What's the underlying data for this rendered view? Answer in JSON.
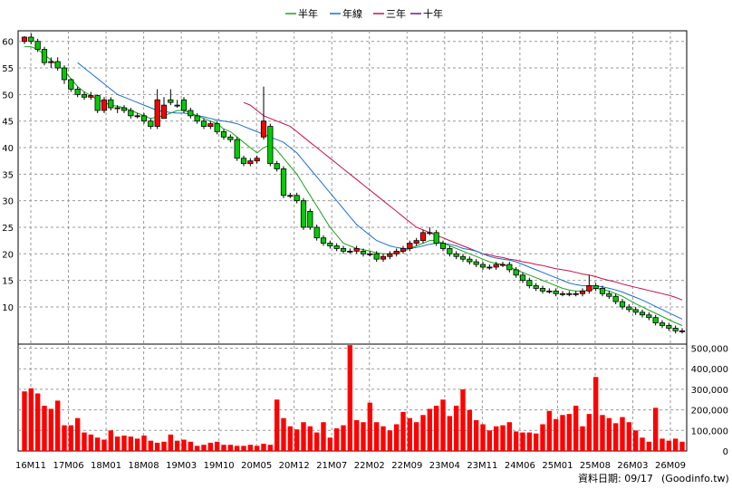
{
  "chart_data": {
    "type": "candlestick",
    "legend": [
      {
        "label": "半年",
        "color": "#1aa51a"
      },
      {
        "label": "年線",
        "color": "#1a6fd6"
      },
      {
        "label": "三年",
        "color": "#c8104a"
      },
      {
        "label": "十年",
        "color": "#6a1a8c"
      }
    ],
    "price_axis": {
      "ylim": [
        3,
        62
      ],
      "ticks": [
        10,
        15,
        20,
        25,
        30,
        35,
        40,
        45,
        50,
        55,
        60
      ]
    },
    "volume_axis": {
      "ylim": [
        0,
        520000
      ],
      "ticks": [
        0,
        100000,
        200000,
        300000,
        400000,
        500000
      ],
      "tick_labels": [
        "0",
        "100,000",
        "200,000",
        "300,000",
        "400,000",
        "500,000"
      ]
    },
    "x_labels": [
      "16M11",
      "17M06",
      "18M01",
      "18M08",
      "19M03",
      "19M10",
      "20M05",
      "20M12",
      "21M07",
      "22M02",
      "22M09",
      "23M04",
      "23M11",
      "24M06",
      "25M01",
      "25M08",
      "26M03",
      "26M09"
    ],
    "candles": {
      "open": [
        60.0,
        60.8,
        60.0,
        58.5,
        56.0,
        56.2,
        55.0,
        52.8,
        51.0,
        50.0,
        49.5,
        49.8,
        47.0,
        49.0,
        47.5,
        47.5,
        47.0,
        46.0,
        46.0,
        45.0,
        44.0,
        45.5,
        49.0,
        48.0,
        49.0,
        47.0,
        46.0,
        45.0,
        44.0,
        44.5,
        43.0,
        42.0,
        41.5,
        38.0,
        37.0,
        37.5,
        42.0,
        44.0,
        37.0,
        36.0,
        31.0,
        31.0,
        30.0,
        28.0,
        25.0,
        23.0,
        22.0,
        21.5,
        21.0,
        20.5,
        20.5,
        20.5,
        20.0,
        20.0,
        19.0,
        19.5,
        20.0,
        20.5,
        21.0,
        22.0,
        22.5,
        24.0,
        24.0,
        22.0,
        21.0,
        20.0,
        19.5,
        19.0,
        18.5,
        18.0,
        17.5,
        17.5,
        18.0,
        18.0,
        17.0,
        16.0,
        15.0,
        14.0,
        13.5,
        13.0,
        13.0,
        12.5,
        12.5,
        12.5,
        12.5,
        13.0,
        14.0,
        13.5,
        12.5,
        12.0,
        11.0,
        10.0,
        9.5,
        9.0,
        8.5,
        8.0,
        7.0,
        6.5,
        6.0,
        5.5
      ],
      "close": [
        60.8,
        60.0,
        58.5,
        56.0,
        56.2,
        55.0,
        52.8,
        51.0,
        50.0,
        49.5,
        49.8,
        47.0,
        49.0,
        47.5,
        47.5,
        47.0,
        46.0,
        46.0,
        45.0,
        44.0,
        49.0,
        48.0,
        48.5,
        48.0,
        47.0,
        46.0,
        45.0,
        44.0,
        44.5,
        43.0,
        42.0,
        41.5,
        38.0,
        37.0,
        37.5,
        38.0,
        45.0,
        37.0,
        36.0,
        31.0,
        31.0,
        30.0,
        25.0,
        25.0,
        23.0,
        22.0,
        21.5,
        21.0,
        20.5,
        20.5,
        21.0,
        20.0,
        20.0,
        19.0,
        19.5,
        20.0,
        20.5,
        21.0,
        22.0,
        22.5,
        24.0,
        24.0,
        22.0,
        21.0,
        20.0,
        19.5,
        19.0,
        18.5,
        18.0,
        17.5,
        17.5,
        18.0,
        18.0,
        17.0,
        16.0,
        15.0,
        14.0,
        13.5,
        13.0,
        13.0,
        12.5,
        12.5,
        12.5,
        12.5,
        13.0,
        14.0,
        13.5,
        12.5,
        12.0,
        11.0,
        10.0,
        9.5,
        9.0,
        8.5,
        8.0,
        7.0,
        6.5,
        6.0,
        5.5,
        5.5
      ],
      "high": [
        61.0,
        61.5,
        60.5,
        59.0,
        57.0,
        57.0,
        55.5,
        53.0,
        51.5,
        50.5,
        50.5,
        50.0,
        49.5,
        49.5,
        48.0,
        48.0,
        47.5,
        46.5,
        46.5,
        45.5,
        51.0,
        49.5,
        51.0,
        49.0,
        49.5,
        47.5,
        46.5,
        45.5,
        45.0,
        45.0,
        43.5,
        42.5,
        42.0,
        38.5,
        38.0,
        38.5,
        51.5,
        44.5,
        37.5,
        36.5,
        31.5,
        31.5,
        30.5,
        28.5,
        25.5,
        23.5,
        22.5,
        22.0,
        21.5,
        21.0,
        21.5,
        21.0,
        20.5,
        20.5,
        20.0,
        20.5,
        21.0,
        21.5,
        22.5,
        23.0,
        24.5,
        25.0,
        24.5,
        22.5,
        21.5,
        20.5,
        20.0,
        19.5,
        19.0,
        18.5,
        18.0,
        18.5,
        18.5,
        18.5,
        17.5,
        16.5,
        15.5,
        14.5,
        14.0,
        13.5,
        13.5,
        13.0,
        13.0,
        13.0,
        13.5,
        16.0,
        14.5,
        14.0,
        13.0,
        12.5,
        11.5,
        10.5,
        10.0,
        9.5,
        9.0,
        8.5,
        7.5,
        7.0,
        6.5,
        6.0
      ],
      "low": [
        59.5,
        59.5,
        58.0,
        55.5,
        55.0,
        54.5,
        52.0,
        50.5,
        49.5,
        49.0,
        49.0,
        46.5,
        46.5,
        47.0,
        46.5,
        46.5,
        45.5,
        45.5,
        44.5,
        43.5,
        43.5,
        47.5,
        48.0,
        47.5,
        46.5,
        45.5,
        44.5,
        43.5,
        43.5,
        42.5,
        41.5,
        41.0,
        37.5,
        36.5,
        36.5,
        37.0,
        41.5,
        36.5,
        35.5,
        30.5,
        30.5,
        29.5,
        24.5,
        24.5,
        22.5,
        21.5,
        21.0,
        20.5,
        20.0,
        20.0,
        20.0,
        19.5,
        19.5,
        18.5,
        18.5,
        19.0,
        19.5,
        20.0,
        20.5,
        21.5,
        22.0,
        23.5,
        21.5,
        20.5,
        19.5,
        19.0,
        18.5,
        18.0,
        17.5,
        17.0,
        17.0,
        17.0,
        17.5,
        16.5,
        15.5,
        14.5,
        13.5,
        13.0,
        12.5,
        12.5,
        12.0,
        12.0,
        12.0,
        12.0,
        12.0,
        12.5,
        13.0,
        12.0,
        11.5,
        10.5,
        9.5,
        9.0,
        8.5,
        8.0,
        7.5,
        6.5,
        6.0,
        5.5,
        5.0,
        5.0
      ]
    },
    "volume": [
      290000,
      305000,
      280000,
      220000,
      205000,
      245000,
      125000,
      125000,
      160000,
      90000,
      80000,
      65000,
      55000,
      100000,
      70000,
      75000,
      70000,
      60000,
      75000,
      50000,
      40000,
      45000,
      80000,
      50000,
      55000,
      45000,
      25000,
      30000,
      40000,
      45000,
      30000,
      30000,
      25000,
      25000,
      30000,
      25000,
      35000,
      30000,
      250000,
      160000,
      120000,
      105000,
      140000,
      120000,
      90000,
      140000,
      65000,
      110000,
      125000,
      515000,
      150000,
      140000,
      235000,
      140000,
      120000,
      100000,
      130000,
      190000,
      160000,
      140000,
      175000,
      205000,
      220000,
      250000,
      170000,
      220000,
      300000,
      200000,
      150000,
      130000,
      100000,
      120000,
      125000,
      140000,
      95000,
      90000,
      90000,
      85000,
      130000,
      195000,
      155000,
      175000,
      180000,
      220000,
      120000,
      180000,
      360000,
      175000,
      160000,
      135000,
      165000,
      140000,
      100000,
      65000,
      45000,
      210000,
      60000,
      50000,
      60000,
      45000
    ],
    "ma_half": [
      59.0,
      59.0,
      58.5,
      57.5,
      56.5,
      55.5,
      54.5,
      53.0,
      51.5,
      50.5,
      49.8,
      49.0,
      48.5,
      48.0,
      47.8,
      47.5,
      47.0,
      46.5,
      46.0,
      45.5,
      45.8,
      46.0,
      46.5,
      47.0,
      47.0,
      46.5,
      46.0,
      45.5,
      45.0,
      44.5,
      43.5,
      43.0,
      42.0,
      41.0,
      40.0,
      39.0,
      40.0,
      40.5,
      39.5,
      38.0,
      36.5,
      35.0,
      33.0,
      31.0,
      29.0,
      27.0,
      25.0,
      23.5,
      22.0,
      21.5,
      21.0,
      20.8,
      20.5,
      20.2,
      20.0,
      20.0,
      20.2,
      20.5,
      21.0,
      21.5,
      22.0,
      22.5,
      22.5,
      22.0,
      21.5,
      21.0,
      20.5,
      20.0,
      19.5,
      19.0,
      18.5,
      18.2,
      18.0,
      17.5,
      17.0,
      16.5,
      16.0,
      15.5,
      15.0,
      14.5,
      14.0,
      13.5,
      13.2,
      13.0,
      13.0,
      13.2,
      13.5,
      13.3,
      13.0,
      12.5,
      12.0,
      11.3,
      10.6,
      10.0,
      9.4,
      8.8,
      8.2,
      7.6,
      7.0,
      6.5
    ],
    "ma_year": [
      null,
      null,
      null,
      null,
      null,
      null,
      null,
      null,
      56.0,
      55.0,
      54.0,
      53.0,
      52.0,
      51.0,
      50.0,
      49.5,
      49.0,
      48.5,
      48.0,
      47.5,
      47.0,
      46.8,
      46.6,
      46.5,
      46.5,
      46.3,
      46.0,
      45.8,
      45.5,
      45.2,
      45.0,
      44.8,
      44.5,
      44.0,
      43.5,
      43.0,
      42.5,
      42.0,
      41.5,
      41.0,
      40.0,
      39.0,
      37.5,
      36.0,
      34.5,
      33.0,
      31.5,
      30.0,
      28.5,
      27.0,
      25.5,
      24.5,
      23.5,
      22.5,
      22.0,
      21.5,
      21.2,
      21.0,
      21.0,
      21.2,
      21.5,
      21.8,
      22.0,
      22.0,
      21.8,
      21.5,
      21.0,
      20.8,
      20.5,
      20.0,
      19.5,
      19.2,
      19.0,
      18.8,
      18.5,
      18.0,
      17.5,
      17.0,
      16.5,
      16.0,
      15.5,
      15.0,
      14.5,
      14.2,
      14.0,
      14.0,
      14.0,
      13.8,
      13.5,
      13.2,
      12.8,
      12.3,
      11.8,
      11.3,
      10.7,
      10.1,
      9.5,
      8.9,
      8.3,
      7.7
    ],
    "ma_3y": [
      null,
      null,
      null,
      null,
      null,
      null,
      null,
      null,
      null,
      null,
      null,
      null,
      null,
      null,
      null,
      null,
      null,
      null,
      null,
      null,
      null,
      null,
      null,
      null,
      null,
      null,
      null,
      null,
      null,
      null,
      null,
      null,
      null,
      48.5,
      48.0,
      47.0,
      46.0,
      45.5,
      45.0,
      44.5,
      44.0,
      43.0,
      42.0,
      41.0,
      40.0,
      39.0,
      38.0,
      37.0,
      36.0,
      35.0,
      34.0,
      33.0,
      32.0,
      31.0,
      30.0,
      29.0,
      28.0,
      27.0,
      26.0,
      25.0,
      24.5,
      24.0,
      23.5,
      23.0,
      22.5,
      22.0,
      21.5,
      21.0,
      20.5,
      20.0,
      19.8,
      19.5,
      19.3,
      19.0,
      18.8,
      18.5,
      18.3,
      18.0,
      17.8,
      17.5,
      17.2,
      17.0,
      16.8,
      16.5,
      16.2,
      16.0,
      15.7,
      15.3,
      15.0,
      14.7,
      14.3,
      14.0,
      13.7,
      13.4,
      13.1,
      12.8,
      12.5,
      12.2,
      11.8,
      11.3
    ],
    "ma_10y": []
  },
  "footer": {
    "date_text": "資料日期: 09/17",
    "source_text": "(Goodinfo.tw)"
  }
}
